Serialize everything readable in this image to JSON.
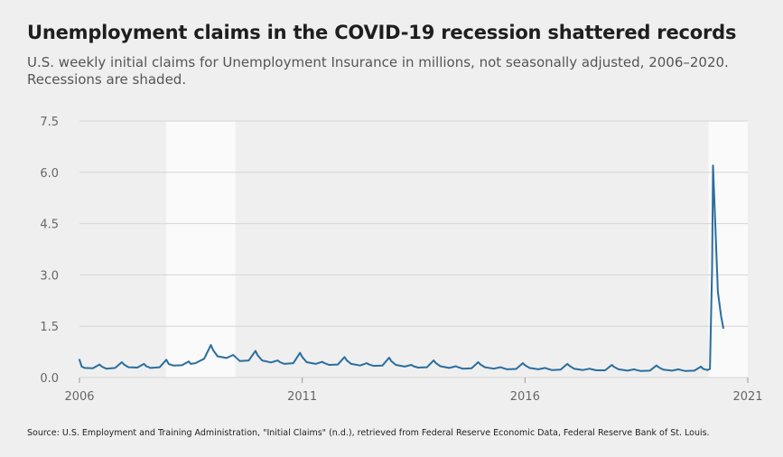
{
  "chart_data": {
    "type": "line",
    "title": "Unemployment claims in the COVID-19 recession shattered records",
    "subtitle": "U.S. weekly initial claims for Unemployment Insurance in millions, not seasonally adjusted, 2006–2020. Recessions are shaded.",
    "source": "Source: U.S. Employment and Training Administration, \"Initial Claims\" (n.d.), retrieved from Federal Reserve Economic Data, Federal Reserve Bank of St. Louis.",
    "xlabel": "",
    "ylabel": "",
    "xlim": [
      2006,
      2021
    ],
    "ylim": [
      0,
      7.5
    ],
    "x_ticks": [
      "2006",
      "2011",
      "2016",
      "2021"
    ],
    "y_ticks": [
      "0.0",
      "1.5",
      "3.0",
      "4.5",
      "6.0",
      "7.5"
    ],
    "grid": true,
    "recessions": [
      {
        "start": 2007.95,
        "end": 2009.5
      },
      {
        "start": 2020.12,
        "end": 2021
      }
    ],
    "series": [
      {
        "color": "#2a6e9e",
        "x": [
          2006.0,
          2006.05,
          2006.12,
          2006.3,
          2006.45,
          2006.5,
          2006.6,
          2006.8,
          2006.95,
          2007.0,
          2007.1,
          2007.3,
          2007.45,
          2007.5,
          2007.6,
          2007.8,
          2007.95,
          2008.0,
          2008.1,
          2008.3,
          2008.45,
          2008.5,
          2008.6,
          2008.8,
          2008.95,
          2009.0,
          2009.1,
          2009.3,
          2009.45,
          2009.5,
          2009.6,
          2009.8,
          2009.95,
          2010.0,
          2010.1,
          2010.3,
          2010.45,
          2010.5,
          2010.6,
          2010.8,
          2010.95,
          2011.0,
          2011.1,
          2011.3,
          2011.45,
          2011.5,
          2011.6,
          2011.8,
          2011.95,
          2012.0,
          2012.1,
          2012.3,
          2012.45,
          2012.5,
          2012.6,
          2012.8,
          2012.95,
          2013.0,
          2013.1,
          2013.3,
          2013.45,
          2013.5,
          2013.6,
          2013.8,
          2013.95,
          2014.0,
          2014.1,
          2014.3,
          2014.45,
          2014.5,
          2014.6,
          2014.8,
          2014.95,
          2015.0,
          2015.1,
          2015.3,
          2015.45,
          2015.5,
          2015.6,
          2015.8,
          2015.95,
          2016.0,
          2016.1,
          2016.3,
          2016.45,
          2016.5,
          2016.6,
          2016.8,
          2016.95,
          2017.0,
          2017.1,
          2017.3,
          2017.45,
          2017.5,
          2017.6,
          2017.8,
          2017.95,
          2018.0,
          2018.1,
          2018.3,
          2018.45,
          2018.5,
          2018.6,
          2018.8,
          2018.95,
          2019.0,
          2019.1,
          2019.3,
          2019.45,
          2019.5,
          2019.6,
          2019.8,
          2019.95,
          2020.0,
          2020.1,
          2020.15,
          2020.2,
          2020.22,
          2020.27,
          2020.33,
          2020.4,
          2020.45
        ],
        "y": [
          0.52,
          0.32,
          0.28,
          0.27,
          0.38,
          0.32,
          0.26,
          0.28,
          0.45,
          0.38,
          0.3,
          0.29,
          0.4,
          0.33,
          0.28,
          0.3,
          0.52,
          0.4,
          0.35,
          0.36,
          0.47,
          0.4,
          0.42,
          0.55,
          0.95,
          0.8,
          0.62,
          0.57,
          0.66,
          0.6,
          0.48,
          0.5,
          0.78,
          0.65,
          0.5,
          0.44,
          0.5,
          0.45,
          0.4,
          0.42,
          0.72,
          0.6,
          0.45,
          0.4,
          0.46,
          0.42,
          0.37,
          0.38,
          0.6,
          0.5,
          0.4,
          0.35,
          0.42,
          0.38,
          0.34,
          0.35,
          0.58,
          0.48,
          0.37,
          0.32,
          0.37,
          0.33,
          0.29,
          0.3,
          0.5,
          0.42,
          0.33,
          0.28,
          0.33,
          0.3,
          0.26,
          0.27,
          0.45,
          0.38,
          0.3,
          0.26,
          0.3,
          0.28,
          0.24,
          0.25,
          0.42,
          0.36,
          0.28,
          0.24,
          0.28,
          0.26,
          0.22,
          0.23,
          0.4,
          0.34,
          0.26,
          0.22,
          0.26,
          0.24,
          0.21,
          0.21,
          0.37,
          0.31,
          0.24,
          0.2,
          0.24,
          0.22,
          0.19,
          0.2,
          0.35,
          0.3,
          0.23,
          0.2,
          0.24,
          0.22,
          0.19,
          0.2,
          0.32,
          0.25,
          0.22,
          0.25,
          3.2,
          6.2,
          4.5,
          2.5,
          1.8,
          1.45
        ]
      }
    ]
  }
}
